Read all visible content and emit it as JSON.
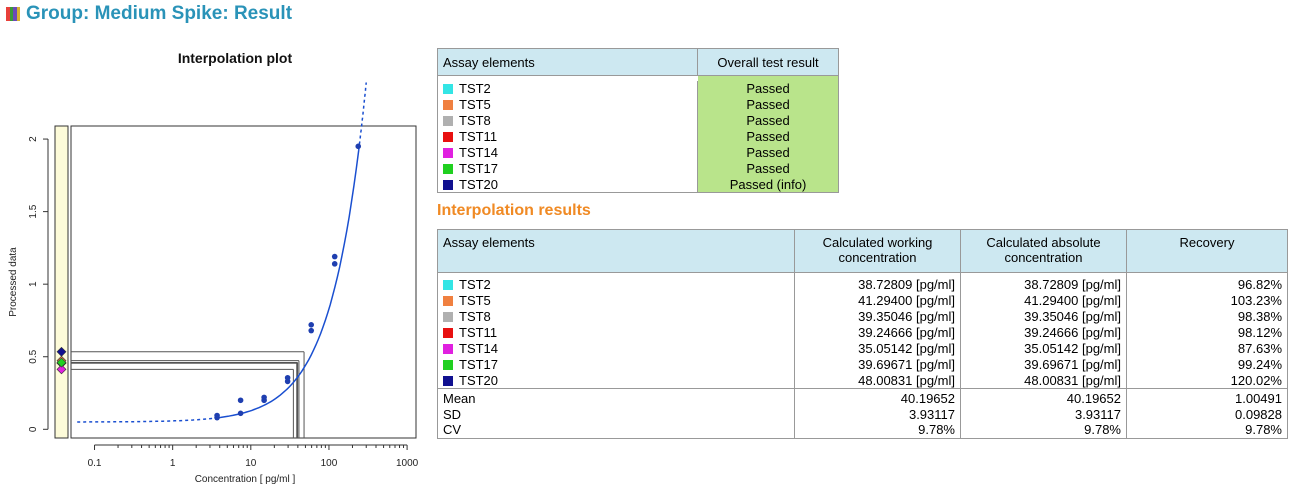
{
  "header": {
    "title": "Group: Medium Spike: Result",
    "icon": "bars-icon"
  },
  "chart_data": {
    "type": "scatter",
    "title": "Interpolation plot",
    "xlabel": "Concentration  [ pg/ml ]",
    "ylabel": "Processed data",
    "xscale": "log",
    "xlim": [
      0.05,
      1300
    ],
    "ylim": [
      -0.06,
      2.09
    ],
    "xticks": [
      0.1,
      1,
      10,
      100,
      1000
    ],
    "xticklabels": [
      "0.1",
      "1",
      "10",
      "100",
      "1000"
    ],
    "yticks": [
      0,
      0.5,
      1,
      1.5,
      2
    ],
    "yticklabels": [
      "0",
      "0.5",
      "1",
      "1.5",
      "2"
    ],
    "standards": [
      {
        "x": 3.7,
        "y": 0.08
      },
      {
        "x": 3.7,
        "y": 0.095
      },
      {
        "x": 7.4,
        "y": 0.11
      },
      {
        "x": 7.4,
        "y": 0.2
      },
      {
        "x": 14.8,
        "y": 0.2
      },
      {
        "x": 14.8,
        "y": 0.22
      },
      {
        "x": 29.6,
        "y": 0.33
      },
      {
        "x": 29.6,
        "y": 0.355
      },
      {
        "x": 59.3,
        "y": 0.68
      },
      {
        "x": 59.3,
        "y": 0.72
      },
      {
        "x": 118.5,
        "y": 1.14
      },
      {
        "x": 118.5,
        "y": 1.19
      },
      {
        "x": 237,
        "y": 1.95
      }
    ],
    "fit_curve": {
      "a": 0.05,
      "b": 0.0078,
      "range": [
        0.05,
        300
      ],
      "dashed_below": 3.6,
      "dashed_above": 240
    },
    "samples": [
      {
        "name": "TST2",
        "color": "#33e5e5",
        "y": 0.456,
        "x": 38.72809
      },
      {
        "name": "TST5",
        "color": "#f08040",
        "y": 0.473,
        "x": 41.294
      },
      {
        "name": "TST8",
        "color": "#b0b0b0",
        "y": 0.457,
        "x": 39.35046
      },
      {
        "name": "TST11",
        "color": "#e81010",
        "y": 0.456,
        "x": 39.24666
      },
      {
        "name": "TST14",
        "color": "#e020e0",
        "y": 0.413,
        "x": 35.05142
      },
      {
        "name": "TST17",
        "color": "#20d020",
        "y": 0.46,
        "x": 39.69671
      },
      {
        "name": "TST20",
        "color": "#101090",
        "y": 0.534,
        "x": 48.00831
      }
    ]
  },
  "assay_table": {
    "headers": [
      "Assay elements",
      "Overall test result"
    ],
    "rows": [
      {
        "name": "TST2",
        "color": "#33e5e5",
        "result": "Passed"
      },
      {
        "name": "TST5",
        "color": "#f08040",
        "result": "Passed"
      },
      {
        "name": "TST8",
        "color": "#b0b0b0",
        "result": "Passed"
      },
      {
        "name": "TST11",
        "color": "#e81010",
        "result": "Passed"
      },
      {
        "name": "TST14",
        "color": "#e020e0",
        "result": "Passed"
      },
      {
        "name": "TST17",
        "color": "#20d020",
        "result": "Passed"
      },
      {
        "name": "TST20",
        "color": "#101090",
        "result": "Passed (info)"
      }
    ]
  },
  "results_title": "Interpolation results",
  "results_table": {
    "headers": [
      "Assay elements",
      "Calculated working concentration",
      "Calculated absolute concentration",
      "Recovery"
    ],
    "rows": [
      {
        "name": "TST2",
        "color": "#33e5e5",
        "working": "38.72809 [pg/ml]",
        "absolute": "38.72809 [pg/ml]",
        "recovery": "96.82%"
      },
      {
        "name": "TST5",
        "color": "#f08040",
        "working": "41.29400 [pg/ml]",
        "absolute": "41.29400 [pg/ml]",
        "recovery": "103.23%"
      },
      {
        "name": "TST8",
        "color": "#b0b0b0",
        "working": "39.35046 [pg/ml]",
        "absolute": "39.35046 [pg/ml]",
        "recovery": "98.38%"
      },
      {
        "name": "TST11",
        "color": "#e81010",
        "working": "39.24666 [pg/ml]",
        "absolute": "39.24666 [pg/ml]",
        "recovery": "98.12%"
      },
      {
        "name": "TST14",
        "color": "#e020e0",
        "working": "35.05142 [pg/ml]",
        "absolute": "35.05142 [pg/ml]",
        "recovery": "87.63%"
      },
      {
        "name": "TST17",
        "color": "#20d020",
        "working": "39.69671 [pg/ml]",
        "absolute": "39.69671 [pg/ml]",
        "recovery": "99.24%"
      },
      {
        "name": "TST20",
        "color": "#101090",
        "working": "48.00831 [pg/ml]",
        "absolute": "48.00831 [pg/ml]",
        "recovery": "120.02%"
      }
    ],
    "stats": [
      {
        "label": "Mean",
        "working": "40.19652",
        "absolute": "40.19652",
        "recovery": "1.00491"
      },
      {
        "label": "SD",
        "working": "3.93117",
        "absolute": "3.93117",
        "recovery": "0.09828"
      },
      {
        "label": "CV",
        "working": "9.78%",
        "absolute": "9.78%",
        "recovery": "9.78%"
      }
    ]
  },
  "colors": {
    "header_bg": "#cde8f1",
    "pass_bg": "#b9e48b",
    "title": "#2a93b8",
    "section": "#f08a24",
    "curve": "#1a4fd0",
    "strip": "#fdfbd9"
  }
}
